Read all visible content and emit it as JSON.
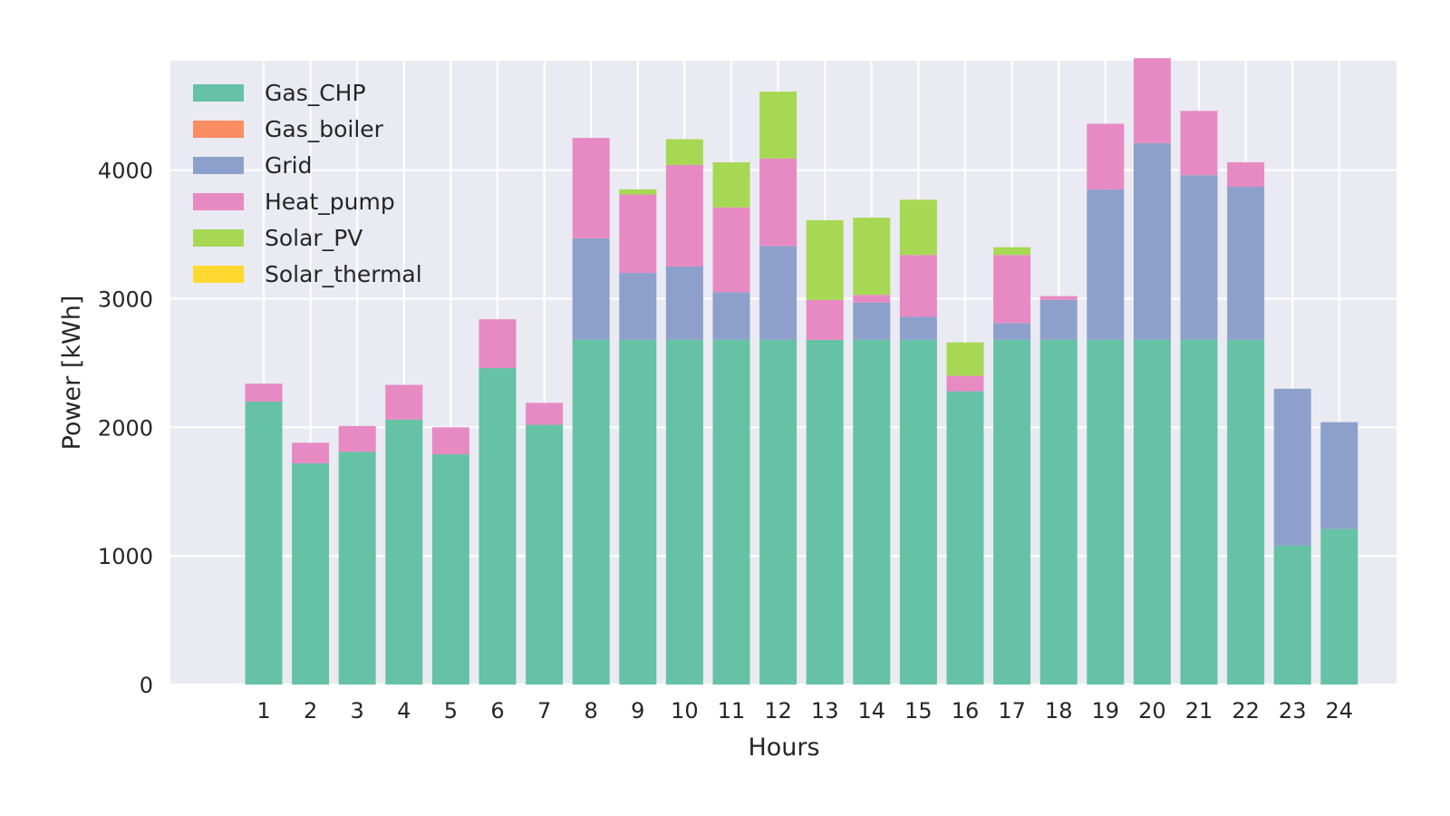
{
  "chart_data": {
    "type": "bar",
    "stacked": true,
    "title": "",
    "xlabel": "Hours",
    "ylabel": "Power [kWh]",
    "ylim": [
      0,
      4850
    ],
    "yticks": [
      0,
      1000,
      2000,
      3000,
      4000
    ],
    "grid": true,
    "legend_position": "top-left",
    "categories": [
      "1",
      "2",
      "3",
      "4",
      "5",
      "6",
      "7",
      "8",
      "9",
      "10",
      "11",
      "12",
      "13",
      "14",
      "15",
      "16",
      "17",
      "18",
      "19",
      "20",
      "21",
      "22",
      "23",
      "24"
    ],
    "series": [
      {
        "name": "Gas_CHP",
        "color": "#66c2a5",
        "values": [
          2200,
          1720,
          1810,
          2060,
          1790,
          2460,
          2020,
          2680,
          2680,
          2680,
          2680,
          2680,
          2680,
          2680,
          2680,
          2280,
          2680,
          2680,
          2680,
          2680,
          2680,
          2680,
          1080,
          1210
        ]
      },
      {
        "name": "Gas_boiler",
        "color": "#fc8d62",
        "values": [
          0,
          0,
          0,
          0,
          0,
          0,
          0,
          0,
          0,
          0,
          0,
          0,
          0,
          0,
          0,
          0,
          0,
          0,
          0,
          0,
          0,
          0,
          0,
          0
        ]
      },
      {
        "name": "Grid",
        "color": "#8da0cb",
        "values": [
          0,
          0,
          0,
          0,
          0,
          0,
          0,
          790,
          520,
          570,
          370,
          730,
          0,
          290,
          180,
          0,
          130,
          310,
          1170,
          1530,
          1280,
          1190,
          1220,
          830
        ]
      },
      {
        "name": "Heat_pump",
        "color": "#e78ac3",
        "values": [
          140,
          160,
          200,
          270,
          210,
          380,
          170,
          780,
          610,
          790,
          660,
          680,
          310,
          60,
          480,
          120,
          530,
          30,
          510,
          660,
          500,
          190,
          0,
          0
        ]
      },
      {
        "name": "Solar_PV",
        "color": "#a6d854",
        "values": [
          0,
          0,
          0,
          0,
          0,
          0,
          0,
          0,
          40,
          200,
          350,
          520,
          620,
          600,
          430,
          260,
          60,
          0,
          0,
          0,
          0,
          0,
          0,
          0
        ]
      },
      {
        "name": "Solar_thermal",
        "color": "#ffd92f",
        "values": [
          0,
          0,
          0,
          0,
          0,
          0,
          0,
          0,
          0,
          0,
          0,
          0,
          0,
          0,
          0,
          0,
          0,
          0,
          0,
          0,
          0,
          0,
          0,
          0
        ]
      }
    ]
  }
}
